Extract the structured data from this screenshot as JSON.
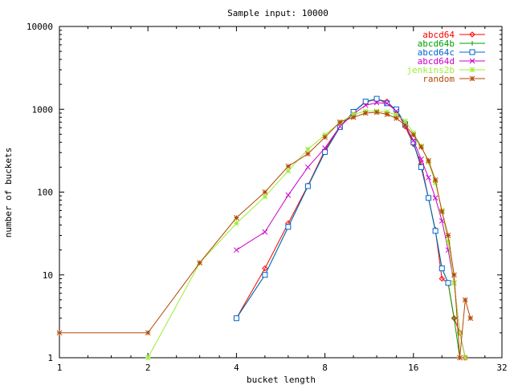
{
  "chart_data": {
    "type": "line",
    "title": "Sample input: 10000",
    "xlabel": "bucket length",
    "ylabel": "number of buckets",
    "x_scale": "log2",
    "y_scale": "log10",
    "xlim": [
      1,
      32
    ],
    "ylim": [
      1,
      10000
    ],
    "x_ticks": [
      1,
      2,
      4,
      8,
      16,
      32
    ],
    "x_tick_labels": [
      "1",
      "2",
      "4",
      "8",
      "16",
      "32"
    ],
    "y_ticks": [
      1,
      10,
      100,
      1000,
      10000
    ],
    "y_tick_labels": [
      "1",
      "10",
      "100",
      "1000",
      "10000"
    ],
    "grid": false,
    "legend_position": "top-right",
    "series": [
      {
        "name": "abcd64",
        "color": "#ff0000",
        "marker": "diamond",
        "x": [
          4,
          5,
          6,
          7,
          8,
          9,
          10,
          11,
          12,
          13,
          14,
          15,
          16,
          17,
          18,
          19,
          20,
          21,
          22,
          23,
          24
        ],
        "y": [
          3,
          12,
          42,
          120,
          320,
          620,
          930,
          1220,
          1320,
          1240,
          960,
          620,
          380,
          220,
          85,
          35,
          9,
          8,
          3,
          2,
          1
        ]
      },
      {
        "name": "abcd64b",
        "color": "#00a000",
        "marker": "plus",
        "x": [
          4,
          5,
          6,
          7,
          8,
          9,
          10,
          11,
          12,
          13,
          14,
          15,
          16,
          17,
          18,
          19,
          20,
          21,
          22,
          23
        ],
        "y": [
          3,
          10,
          38,
          118,
          305,
          610,
          920,
          1230,
          1340,
          1180,
          980,
          650,
          390,
          200,
          85,
          34,
          12,
          8,
          3,
          1
        ]
      },
      {
        "name": "abcd64c",
        "color": "#0066cc",
        "marker": "square",
        "x": [
          4,
          5,
          6,
          7,
          8,
          9,
          10,
          11,
          12,
          13,
          14,
          15,
          16,
          17,
          18,
          19,
          20,
          21
        ],
        "y": [
          3,
          10,
          38,
          118,
          305,
          610,
          930,
          1240,
          1340,
          1180,
          1000,
          660,
          400,
          200,
          85,
          34,
          12,
          8
        ]
      },
      {
        "name": "abcd64d",
        "color": "#cc00cc",
        "marker": "cross",
        "x": [
          4,
          5,
          6,
          7,
          8,
          9,
          10,
          11,
          12,
          13,
          14,
          15,
          16,
          17,
          18,
          19,
          20,
          21,
          22,
          23,
          24
        ],
        "y": [
          20,
          33,
          92,
          200,
          340,
          620,
          880,
          1120,
          1200,
          1180,
          950,
          640,
          420,
          250,
          150,
          85,
          45,
          20,
          8,
          2,
          1
        ]
      },
      {
        "name": "jenkins2b",
        "color": "#99ee33",
        "marker": "star",
        "x": [
          2,
          3,
          4,
          5,
          6,
          7,
          8,
          9,
          10,
          11,
          12,
          13,
          14,
          15,
          16,
          17,
          18,
          19,
          20,
          21,
          22,
          23,
          24
        ],
        "y": [
          1,
          14,
          42,
          88,
          180,
          330,
          490,
          690,
          870,
          950,
          950,
          930,
          850,
          720,
          520,
          360,
          230,
          130,
          60,
          25,
          8,
          2,
          1
        ]
      },
      {
        "name": "random",
        "color": "#b34700",
        "marker": "star",
        "x": [
          1,
          2,
          3,
          4,
          5,
          6,
          7,
          8,
          9,
          10,
          11,
          12,
          13,
          14,
          15,
          16,
          17,
          18,
          19,
          20,
          21,
          22,
          23,
          24,
          25
        ],
        "y": [
          2,
          2,
          14,
          49,
          100,
          205,
          290,
          460,
          700,
          800,
          900,
          920,
          870,
          780,
          640,
          490,
          350,
          240,
          140,
          58,
          30,
          10,
          1,
          5,
          3
        ]
      }
    ]
  }
}
